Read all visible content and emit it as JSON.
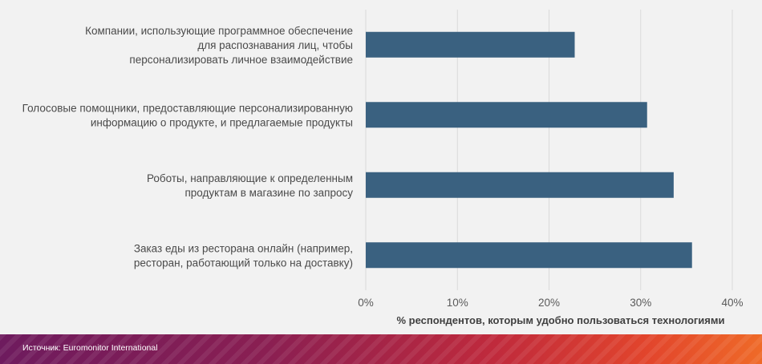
{
  "chart_data": {
    "type": "bar",
    "orientation": "horizontal",
    "categories": [
      [
        "Компании, использующие программное обеспечение",
        "для распознавания лиц, чтобы",
        "персонализировать личное взаимодействие"
      ],
      [
        "Голосовые помощники, предоставляющие персонализированную",
        "информацию о продукте, и предлагаемые продукты"
      ],
      [
        "Роботы, направляющие к определенным",
        "продуктам в магазине по запросу"
      ],
      [
        "Заказ еды из ресторана онлайн (например,",
        "ресторан, работающий только на доставку)"
      ]
    ],
    "values": [
      22.8,
      30.7,
      33.6,
      35.6
    ],
    "xlim": [
      0,
      40
    ],
    "xticks": [
      0,
      10,
      20,
      30,
      40
    ],
    "tick_suffix": "%",
    "xlabel": "% респондентов, которым удобно пользоваться технологиями",
    "grid": "vertical",
    "bar_color": "#3a6180",
    "grid_color": "#d9d9d9"
  },
  "footer": {
    "source": "Источник: Euromonitor International"
  }
}
